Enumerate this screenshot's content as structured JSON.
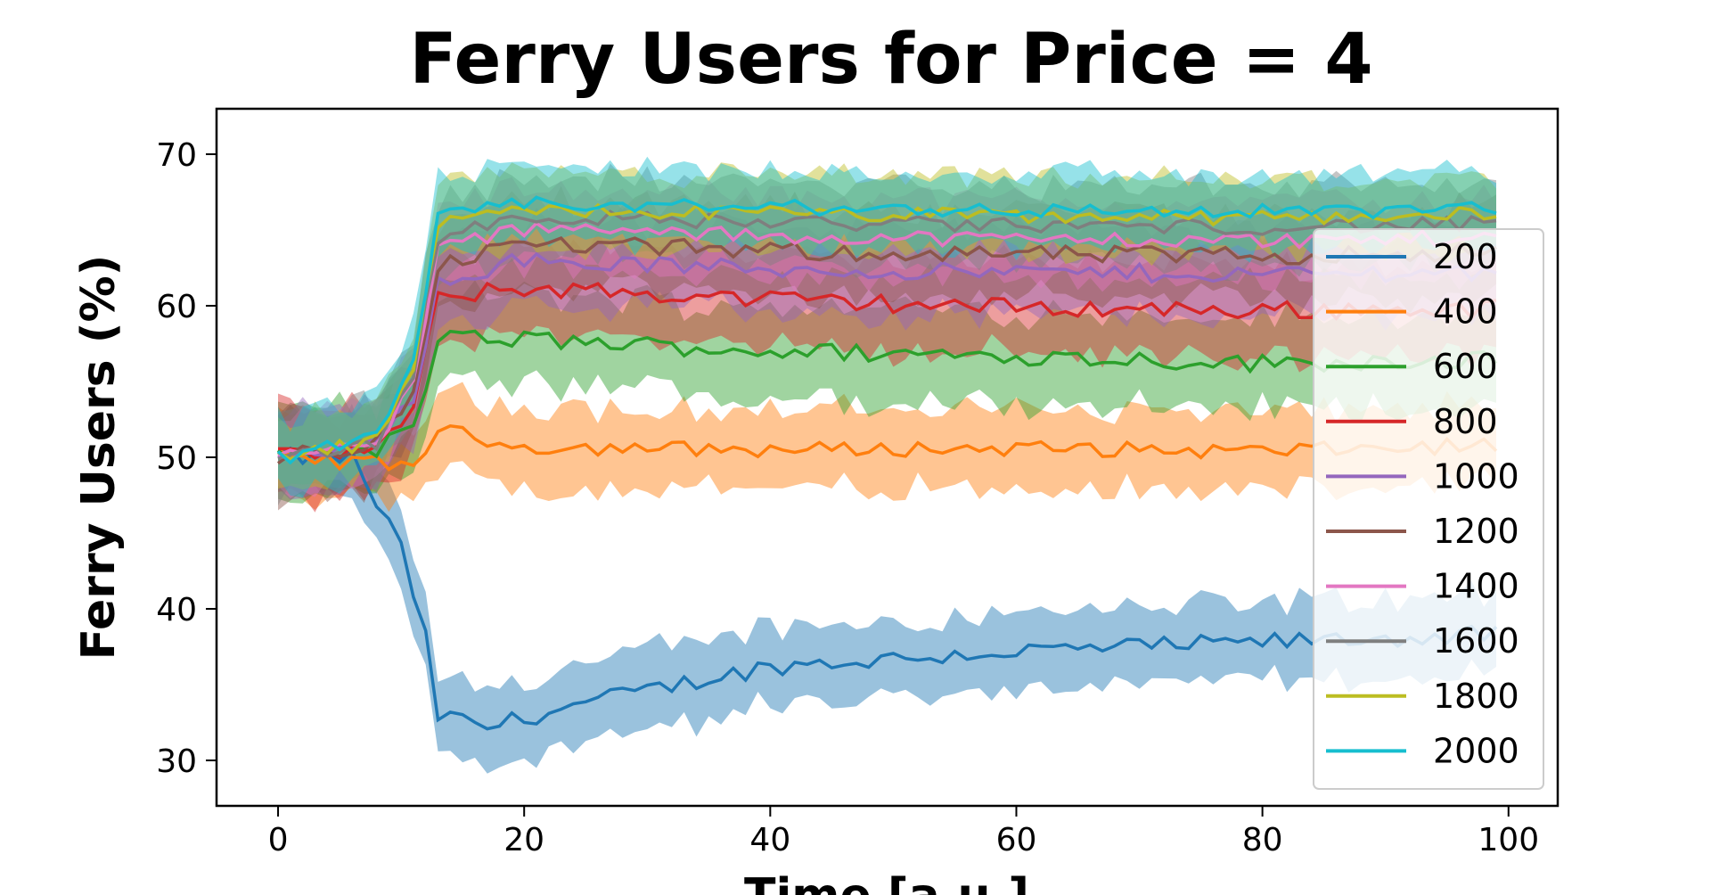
{
  "chart_data": {
    "type": "line",
    "title": "Ferry Users for Price = 4",
    "xlabel": "Time [a.u.]",
    "ylabel": "Ferry Users (%)",
    "xlim": [
      -5,
      104
    ],
    "ylim": [
      27,
      73
    ],
    "xticks": [
      0,
      20,
      40,
      60,
      80,
      100
    ],
    "yticks": [
      30,
      40,
      50,
      60,
      70
    ],
    "x_range": [
      0,
      99
    ],
    "grid": false,
    "legend_position": "right",
    "band_half_width_note_units": "percent",
    "series": [
      {
        "name": "200",
        "color": "#1f77b4",
        "start": 50,
        "transition": [
          [
            6,
            50
          ],
          [
            8,
            47
          ],
          [
            10,
            44
          ],
          [
            12,
            38
          ],
          [
            13,
            33
          ],
          [
            17,
            32.2
          ],
          [
            25,
            33.8
          ],
          [
            40,
            36.2
          ],
          [
            60,
            37.2
          ],
          [
            80,
            37.8
          ],
          [
            99,
            38.3
          ]
        ],
        "band": 2.6,
        "noise": 0.6
      },
      {
        "name": "400",
        "color": "#ff7f0e",
        "start": 50,
        "transition": [
          [
            8,
            49.6
          ],
          [
            11,
            49.5
          ],
          [
            13,
            51.8
          ],
          [
            20,
            50.7
          ],
          [
            40,
            50.5
          ],
          [
            60,
            50.6
          ],
          [
            80,
            50.4
          ],
          [
            99,
            50.8
          ]
        ],
        "band": 2.6,
        "noise": 0.5
      },
      {
        "name": "600",
        "color": "#2ca02c",
        "start": 50,
        "transition": [
          [
            8,
            50.5
          ],
          [
            11,
            52
          ],
          [
            13,
            57.8
          ],
          [
            20,
            57.8
          ],
          [
            40,
            57
          ],
          [
            60,
            56.7
          ],
          [
            80,
            56.2
          ],
          [
            99,
            56.5
          ]
        ],
        "band": 3.0,
        "noise": 0.6
      },
      {
        "name": "800",
        "color": "#d62728",
        "start": 50,
        "transition": [
          [
            8,
            50.6
          ],
          [
            11,
            53
          ],
          [
            13,
            60.5
          ],
          [
            20,
            61.2
          ],
          [
            40,
            60.4
          ],
          [
            60,
            59.9
          ],
          [
            80,
            59.7
          ],
          [
            99,
            59.8
          ]
        ],
        "band": 3.0,
        "noise": 0.6
      },
      {
        "name": "1000",
        "color": "#9467bd",
        "start": 50,
        "transition": [
          [
            8,
            50.7
          ],
          [
            11,
            54
          ],
          [
            13,
            61.8
          ],
          [
            20,
            63
          ],
          [
            40,
            62.4
          ],
          [
            60,
            62.2
          ],
          [
            80,
            62.1
          ],
          [
            99,
            62.3
          ]
        ],
        "band": 2.8,
        "noise": 0.6
      },
      {
        "name": "1200",
        "color": "#8c564b",
        "start": 50,
        "transition": [
          [
            8,
            50.8
          ],
          [
            11,
            54.5
          ],
          [
            13,
            62.8
          ],
          [
            20,
            64.1
          ],
          [
            40,
            63.6
          ],
          [
            60,
            63.4
          ],
          [
            80,
            63.3
          ],
          [
            99,
            63.6
          ]
        ],
        "band": 2.8,
        "noise": 0.6
      },
      {
        "name": "1400",
        "color": "#e377c2",
        "start": 50,
        "transition": [
          [
            8,
            50.9
          ],
          [
            11,
            55
          ],
          [
            13,
            63.8
          ],
          [
            20,
            65.1
          ],
          [
            40,
            64.6
          ],
          [
            60,
            64.4
          ],
          [
            80,
            64.3
          ],
          [
            99,
            64.5
          ]
        ],
        "band": 2.6,
        "noise": 0.5
      },
      {
        "name": "1600",
        "color": "#7f7f7f",
        "start": 50,
        "transition": [
          [
            8,
            51
          ],
          [
            11,
            55.5
          ],
          [
            13,
            64.6
          ],
          [
            20,
            65.9
          ],
          [
            40,
            65.5
          ],
          [
            60,
            65.3
          ],
          [
            80,
            65.2
          ],
          [
            99,
            65.4
          ]
        ],
        "band": 2.6,
        "noise": 0.5
      },
      {
        "name": "1800",
        "color": "#bcbd22",
        "start": 50,
        "transition": [
          [
            8,
            51
          ],
          [
            11,
            56
          ],
          [
            13,
            65.3
          ],
          [
            20,
            66.3
          ],
          [
            40,
            66.1
          ],
          [
            60,
            65.9
          ],
          [
            80,
            65.8
          ],
          [
            99,
            66.1
          ]
        ],
        "band": 2.4,
        "noise": 0.5
      },
      {
        "name": "2000",
        "color": "#17becf",
        "start": 50,
        "transition": [
          [
            8,
            51.2
          ],
          [
            11,
            56.5
          ],
          [
            13,
            65.8
          ],
          [
            20,
            66.7
          ],
          [
            40,
            66.5
          ],
          [
            60,
            66.3
          ],
          [
            80,
            66.2
          ],
          [
            99,
            66.4
          ]
        ],
        "band": 2.4,
        "noise": 0.5
      }
    ]
  }
}
